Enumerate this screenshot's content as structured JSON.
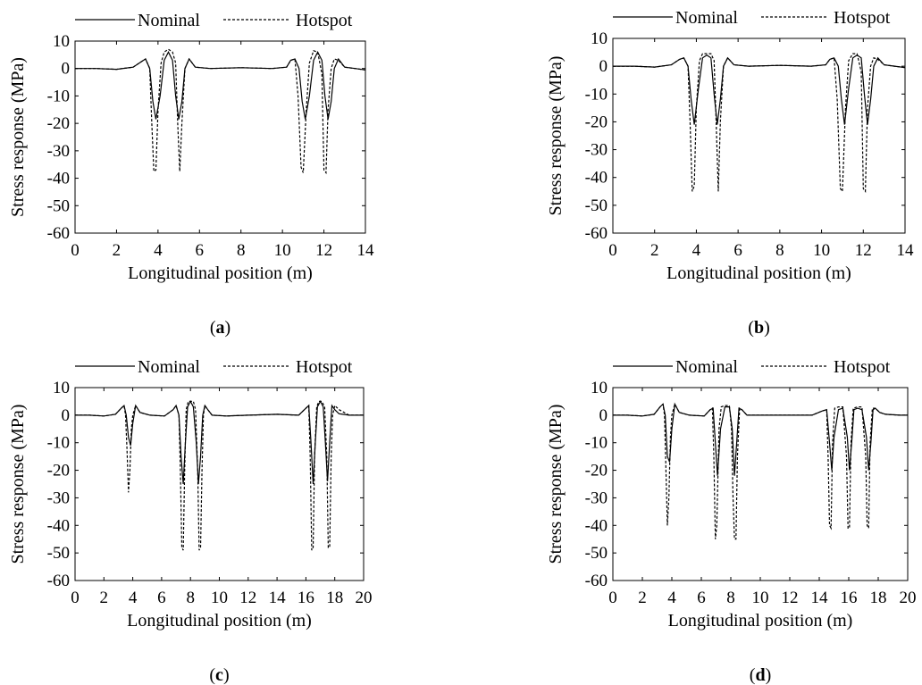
{
  "legend": {
    "nominal": "Nominal",
    "hotspot": "Hotspot"
  },
  "colors": {
    "line": "#000000",
    "background": "#ffffff"
  },
  "chart_data": [
    {
      "type": "line",
      "panel": "(a)",
      "xlabel": "Longitudinal position (m)",
      "ylabel": "Stress response (MPa)",
      "xlim": [
        0,
        14
      ],
      "ylim": [
        -60,
        10
      ],
      "xticks": [
        0,
        2,
        4,
        6,
        8,
        10,
        12,
        14
      ],
      "yticks": [
        10,
        0,
        -10,
        -20,
        -30,
        -40,
        -50,
        -60
      ],
      "legend": "top",
      "grid": false,
      "series": [
        {
          "name": "Nominal",
          "style": "solid",
          "x": [
            0,
            1,
            2,
            2.8,
            3.2,
            3.4,
            3.6,
            3.75,
            3.9,
            4.1,
            4.3,
            4.5,
            4.7,
            4.85,
            5.0,
            5.15,
            5.3,
            5.5,
            5.8,
            6.5,
            8,
            9.5,
            10.2,
            10.4,
            10.6,
            10.8,
            10.95,
            11.1,
            11.3,
            11.5,
            11.7,
            11.9,
            12.05,
            12.2,
            12.35,
            12.5,
            12.7,
            13.0,
            13.5,
            14
          ],
          "y": [
            0,
            0,
            -0.3,
            0.5,
            2.5,
            3.5,
            0,
            -12,
            -18.5,
            -10,
            3,
            6,
            3,
            -10,
            -18.5,
            -12,
            0,
            3.5,
            0.5,
            0,
            0.3,
            0,
            0.5,
            3,
            3.5,
            0,
            -12,
            -18.5,
            -10,
            3,
            6,
            3,
            -10,
            -18.5,
            -12,
            0,
            3.5,
            0.5,
            0,
            -0.5
          ]
        },
        {
          "name": "Hotspot",
          "style": "dashed",
          "x": [
            0,
            1,
            2,
            2.8,
            3.2,
            3.4,
            3.6,
            3.7,
            3.8,
            3.9,
            4.0,
            4.15,
            4.3,
            4.5,
            4.7,
            4.85,
            4.95,
            5.05,
            5.15,
            5.3,
            5.5,
            5.8,
            6.5,
            8,
            9.5,
            10.2,
            10.4,
            10.6,
            10.75,
            10.9,
            11.0,
            11.15,
            11.3,
            11.5,
            11.7,
            11.9,
            12.0,
            12.1,
            12.2,
            12.35,
            12.5,
            12.7,
            13.0,
            13.5,
            14
          ],
          "y": [
            0,
            0,
            -0.3,
            0.5,
            2.5,
            3.5,
            0,
            -20,
            -37.5,
            -37,
            -15,
            2,
            6,
            7,
            6,
            2,
            -20,
            -37.5,
            -20,
            0,
            3.5,
            0.5,
            0,
            0.3,
            0,
            0.5,
            3,
            3.5,
            -10,
            -36,
            -38,
            -15,
            2,
            6.5,
            6,
            -2,
            -37,
            -38,
            -15,
            0,
            3.5,
            3,
            0.5,
            0,
            -0.5
          ]
        }
      ]
    },
    {
      "type": "line",
      "panel": "(b)",
      "xlabel": "Longitudinal position (m)",
      "ylabel": "Stress response (MPa)",
      "xlim": [
        0,
        14
      ],
      "ylim": [
        -60,
        10
      ],
      "xticks": [
        0,
        2,
        4,
        6,
        8,
        10,
        12,
        14
      ],
      "yticks": [
        10,
        0,
        -10,
        -20,
        -30,
        -40,
        -50,
        -60
      ],
      "legend": "top",
      "grid": false,
      "series": [
        {
          "name": "Nominal",
          "style": "solid",
          "x": [
            0,
            1,
            2,
            2.8,
            3.2,
            3.4,
            3.6,
            3.75,
            3.9,
            4.1,
            4.3,
            4.5,
            4.7,
            4.85,
            5.0,
            5.15,
            5.3,
            5.5,
            5.8,
            6.5,
            8,
            9.5,
            10.2,
            10.4,
            10.6,
            10.8,
            10.95,
            11.1,
            11.3,
            11.5,
            11.7,
            11.9,
            12.05,
            12.2,
            12.35,
            12.5,
            12.7,
            13.0,
            13.5,
            14
          ],
          "y": [
            0,
            0,
            -0.3,
            0.5,
            2.5,
            3,
            0,
            -12,
            -21,
            -8,
            3,
            4,
            3,
            -10,
            -21,
            -12,
            0,
            3,
            0.5,
            0,
            0.3,
            0,
            0.5,
            2.5,
            3,
            0,
            -12,
            -21,
            -8,
            3,
            4,
            3,
            -10,
            -21,
            -12,
            0,
            3,
            0.5,
            0,
            -0.5
          ]
        },
        {
          "name": "Hotspot",
          "style": "dashed",
          "x": [
            0,
            1,
            2,
            2.8,
            3.2,
            3.4,
            3.6,
            3.7,
            3.8,
            3.9,
            4.0,
            4.15,
            4.3,
            4.5,
            4.7,
            4.85,
            4.95,
            5.05,
            5.15,
            5.3,
            5.5,
            5.8,
            6.5,
            8,
            9.5,
            10.2,
            10.4,
            10.6,
            10.75,
            10.9,
            11.0,
            11.15,
            11.3,
            11.5,
            11.7,
            11.9,
            12.0,
            12.1,
            12.2,
            12.35,
            12.5,
            12.7,
            13.0,
            13.5,
            14
          ],
          "y": [
            0,
            0,
            -0.3,
            0.5,
            2.5,
            3,
            0,
            -20,
            -45,
            -43,
            -15,
            2,
            4.5,
            4.5,
            4.5,
            2,
            -20,
            -45,
            -20,
            0,
            3,
            0.5,
            0,
            0.3,
            0,
            0.5,
            2.5,
            3,
            -12,
            -44,
            -45,
            -15,
            2,
            4.5,
            4.5,
            -2,
            -44,
            -45,
            -15,
            0,
            3,
            2.5,
            0.5,
            0,
            -0.5
          ]
        }
      ]
    },
    {
      "type": "line",
      "panel": "(c)",
      "xlabel": "Longitudinal position (m)",
      "ylabel": "Stress response (MPa)",
      "xlim": [
        0,
        20
      ],
      "ylim": [
        -60,
        10
      ],
      "xticks": [
        0,
        2,
        4,
        6,
        8,
        10,
        12,
        14,
        16,
        18,
        20
      ],
      "yticks": [
        10,
        0,
        -10,
        -20,
        -30,
        -40,
        -50,
        -60
      ],
      "legend": "top",
      "grid": false,
      "series": [
        {
          "name": "Nominal",
          "style": "solid",
          "x": [
            0,
            1,
            2,
            2.8,
            3.2,
            3.4,
            3.55,
            3.7,
            3.85,
            4.0,
            4.2,
            4.5,
            5.2,
            6.2,
            6.8,
            7.0,
            7.2,
            7.35,
            7.5,
            7.65,
            7.8,
            8.0,
            8.2,
            8.4,
            8.55,
            8.7,
            8.85,
            9.0,
            9.2,
            9.5,
            10.5,
            12,
            14,
            15.5,
            16.0,
            16.2,
            16.35,
            16.5,
            16.65,
            16.8,
            17.0,
            17.2,
            17.35,
            17.5,
            17.65,
            17.8,
            18.0,
            18.3,
            19,
            20
          ],
          "y": [
            0,
            0,
            -0.3,
            0.3,
            2.5,
            3.5,
            0,
            -8,
            -11,
            -3,
            3.5,
            1,
            0,
            -0.3,
            2,
            3.5,
            0,
            -15,
            -25,
            -10,
            3,
            5,
            3,
            -10,
            -25,
            -15,
            0,
            3.5,
            2,
            0,
            -0.3,
            0,
            0.3,
            0,
            2.5,
            3.5,
            -10,
            -25,
            -10,
            3,
            5,
            3,
            -10,
            -24,
            -10,
            3.5,
            2,
            0.5,
            0,
            0
          ]
        },
        {
          "name": "Hotspot",
          "style": "dashed",
          "x": [
            0,
            1,
            2,
            2.8,
            3.2,
            3.4,
            3.5,
            3.6,
            3.7,
            3.8,
            3.9,
            4.0,
            4.2,
            4.5,
            5.2,
            6.2,
            6.8,
            7.0,
            7.2,
            7.3,
            7.4,
            7.5,
            7.6,
            7.7,
            7.85,
            8.0,
            8.2,
            8.35,
            8.5,
            8.6,
            8.7,
            8.8,
            8.9,
            9.0,
            9.2,
            9.5,
            10.5,
            12,
            14,
            15.5,
            16.0,
            16.2,
            16.3,
            16.4,
            16.5,
            16.6,
            16.75,
            16.9,
            17.1,
            17.3,
            17.45,
            17.55,
            17.65,
            17.75,
            17.85,
            18.0,
            18.3,
            19,
            20
          ],
          "y": [
            0,
            0,
            -0.3,
            0.3,
            2.5,
            3.5,
            0,
            -12,
            -28,
            -20,
            -5,
            0,
            3.5,
            1,
            0,
            -0.3,
            2,
            3.5,
            0,
            -20,
            -48,
            -49,
            -20,
            2,
            5,
            5,
            5,
            2,
            -20,
            -49,
            -48,
            -20,
            0,
            3.5,
            2,
            0,
            -0.3,
            0,
            0.3,
            0,
            2.5,
            3.5,
            -15,
            -49,
            -48,
            -15,
            3,
            5,
            5,
            3,
            -15,
            -48,
            -48,
            -15,
            0,
            3.5,
            2,
            0,
            0
          ]
        }
      ]
    },
    {
      "type": "line",
      "panel": "(d)",
      "xlabel": "Longitudinal position (m)",
      "ylabel": "Stress response (MPa)",
      "xlim": [
        0,
        20
      ],
      "ylim": [
        -60,
        10
      ],
      "xticks": [
        0,
        2,
        4,
        6,
        8,
        10,
        12,
        14,
        16,
        18,
        20
      ],
      "yticks": [
        10,
        0,
        -10,
        -20,
        -30,
        -40,
        -50,
        -60
      ],
      "legend": "top",
      "grid": false,
      "series": [
        {
          "name": "Nominal",
          "style": "solid",
          "x": [
            0,
            1,
            2,
            2.8,
            3.2,
            3.4,
            3.55,
            3.7,
            3.85,
            4.0,
            4.2,
            4.5,
            5.2,
            6.2,
            6.6,
            6.8,
            6.95,
            7.1,
            7.3,
            7.6,
            7.9,
            8.1,
            8.25,
            8.4,
            8.55,
            8.75,
            9.1,
            10,
            12,
            13.5,
            14.2,
            14.5,
            14.7,
            14.85,
            15.0,
            15.3,
            15.6,
            15.9,
            16.05,
            16.2,
            16.35,
            16.6,
            16.9,
            17.2,
            17.35,
            17.5,
            17.65,
            17.8,
            18.1,
            18.5,
            19.5,
            20
          ],
          "y": [
            0,
            0,
            -0.3,
            0.3,
            3,
            4,
            0,
            -15,
            -17,
            -5,
            4,
            1,
            0,
            -0.3,
            2,
            2.5,
            -10,
            -22,
            -5,
            3,
            3,
            -5,
            -22,
            -10,
            2.5,
            2,
            0,
            0,
            0,
            0,
            1.5,
            2,
            -10,
            -20,
            -8,
            2,
            2.5,
            -8,
            -20,
            -10,
            2,
            2.5,
            2,
            -8,
            -20,
            -10,
            2,
            2.5,
            1,
            0.3,
            0,
            0
          ]
        },
        {
          "name": "Hotspot",
          "style": "dashed",
          "x": [
            0,
            1,
            2,
            2.8,
            3.2,
            3.4,
            3.5,
            3.6,
            3.7,
            3.8,
            3.9,
            4.0,
            4.2,
            4.5,
            5.2,
            6.2,
            6.6,
            6.75,
            6.85,
            6.95,
            7.05,
            7.2,
            7.35,
            7.6,
            7.9,
            8.05,
            8.15,
            8.25,
            8.35,
            8.45,
            8.6,
            8.75,
            9.1,
            10,
            12,
            13.5,
            14.2,
            14.5,
            14.6,
            14.7,
            14.8,
            14.9,
            15.05,
            15.3,
            15.6,
            15.85,
            15.95,
            16.05,
            16.15,
            16.3,
            16.6,
            16.9,
            17.15,
            17.25,
            17.35,
            17.45,
            17.6,
            17.8,
            18.1,
            18.5,
            19.5,
            20
          ],
          "y": [
            0,
            0,
            -0.3,
            0.3,
            3,
            4,
            0,
            -20,
            -40,
            -30,
            -8,
            0,
            4,
            1,
            0,
            -0.3,
            2,
            2.5,
            -15,
            -45,
            -40,
            -5,
            3,
            3.5,
            3.5,
            -5,
            -30,
            -45,
            -45,
            -15,
            2.5,
            2,
            0,
            0,
            0,
            0,
            1.5,
            2,
            -15,
            -40,
            -41,
            -10,
            2.5,
            3,
            3,
            -15,
            -41,
            -41,
            -10,
            2.5,
            3,
            3,
            -15,
            -40,
            -41,
            -10,
            2.5,
            2.5,
            1,
            0.3,
            0,
            0
          ]
        }
      ]
    }
  ]
}
